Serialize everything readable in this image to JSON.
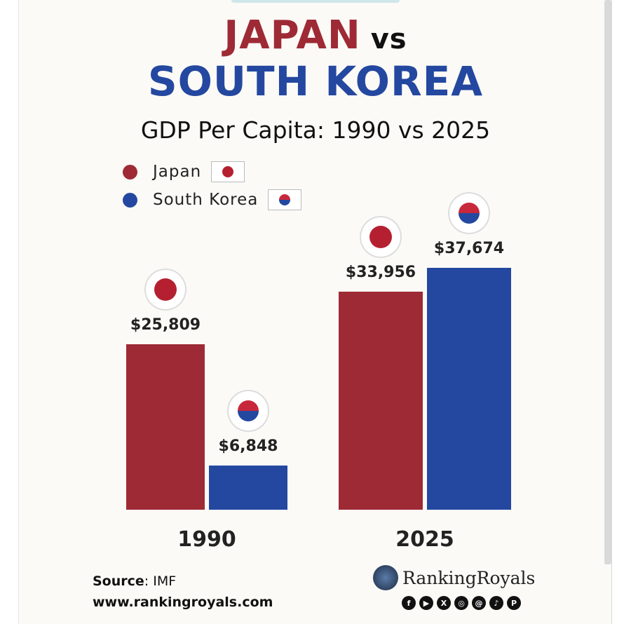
{
  "title": {
    "line1": "JAPAN",
    "vs": "vs",
    "line2": "SOUTH KOREA"
  },
  "subtitle": "GDP Per Capita: 1990 vs 2025",
  "legend": [
    {
      "label": "Japan",
      "color": "#9e2a35",
      "flag": "japan-flag-icon"
    },
    {
      "label": "South Korea",
      "color": "#2448a0",
      "flag": "south-korea-flag-icon"
    }
  ],
  "chart_data": {
    "type": "bar",
    "title": "GDP Per Capita: 1990 vs 2025",
    "categories": [
      "1990",
      "2025"
    ],
    "series": [
      {
        "name": "Japan",
        "color": "#9e2a35",
        "values": [
          25809,
          33956
        ],
        "labels": [
          "$25,809",
          "$33,956"
        ]
      },
      {
        "name": "South Korea",
        "color": "#2448a0",
        "values": [
          6848,
          37674
        ],
        "labels": [
          "$6,848",
          "$37,674"
        ]
      }
    ],
    "ylim": [
      0,
      37674
    ],
    "grid": false,
    "legend_placement": "top-left"
  },
  "footer": {
    "source_label": "Source",
    "source_value": ": IMF",
    "url": "www.rankingroyals.com",
    "brand": "RankingRoyals",
    "socials": [
      "f",
      "▶",
      "X",
      "◎",
      "@",
      "♪",
      "P"
    ]
  }
}
